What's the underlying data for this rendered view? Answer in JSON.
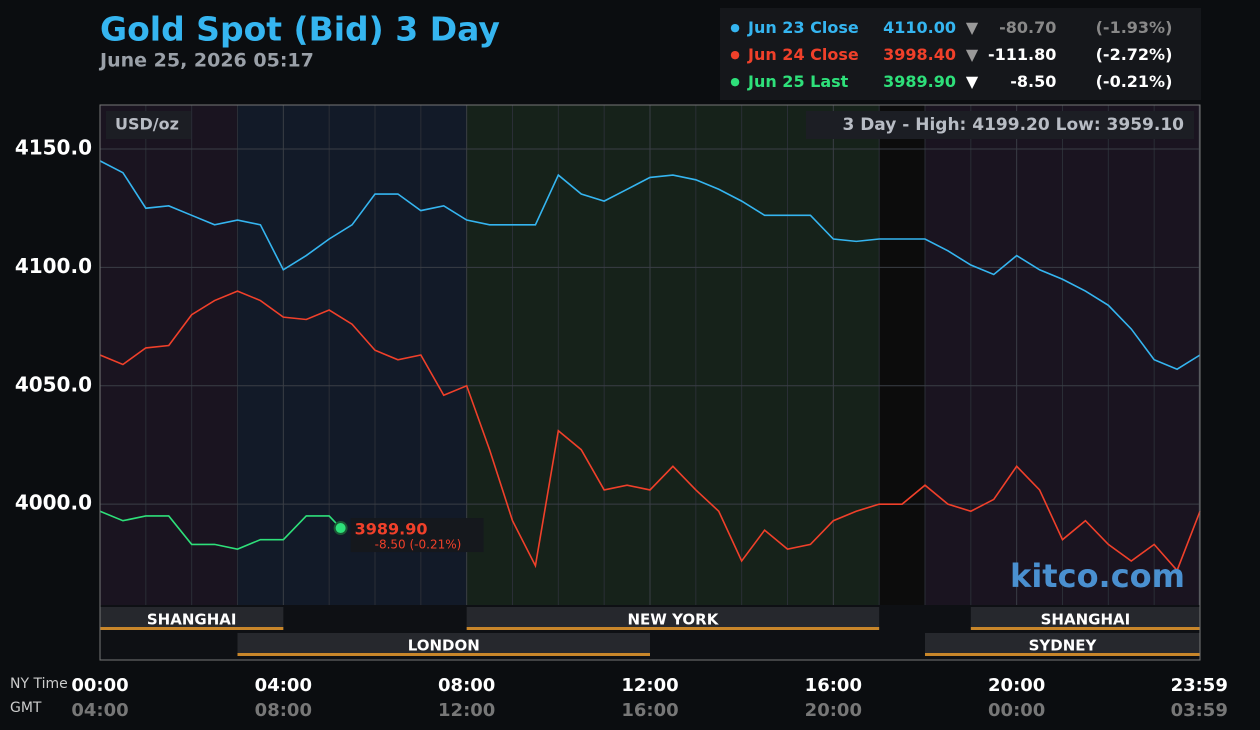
{
  "chart_data": {
    "type": "line",
    "title": "Gold Spot (Bid) 3 Day",
    "subtitle": "June 25, 2026 05:17",
    "unit_label": "USD/oz",
    "range_label": "3 Day - High: 4199.20  Low: 3959.10",
    "watermark": "kitco.com",
    "x_label": "NY Time",
    "x2_label": "GMT",
    "xlim": [
      0,
      24
    ],
    "ylim": [
      3957.4,
      4168.6
    ],
    "xticks": [
      {
        "value": 0,
        "label": "00:00"
      },
      {
        "value": 4,
        "label": "04:00"
      },
      {
        "value": 8,
        "label": "08:00"
      },
      {
        "value": 12,
        "label": "12:00"
      },
      {
        "value": 16,
        "label": "16:00"
      },
      {
        "value": 20,
        "label": "20:00"
      },
      {
        "value": 23.983,
        "label": "23:59"
      }
    ],
    "gmt_labels": [
      "04:00",
      "08:00",
      "12:00",
      "16:00",
      "20:00",
      "00:00",
      "03:59"
    ],
    "xminorticks": [
      1,
      2,
      3,
      5,
      6,
      7,
      9,
      10,
      11,
      13,
      14,
      15,
      17,
      18,
      19,
      21,
      22,
      23
    ],
    "yticks": [
      {
        "value": 4000,
        "label": "4000.0"
      },
      {
        "value": 4050,
        "label": "4050.0"
      },
      {
        "value": 4100,
        "label": "4100.0"
      },
      {
        "value": 4150,
        "label": "4150.0"
      }
    ],
    "grid": true,
    "sessions": [
      [
        {
          "name": "SHANGHAI",
          "start": 0,
          "end": 4
        },
        {
          "name": "NEW YORK",
          "start": 8,
          "end": 17
        },
        {
          "name": "SHANGHAI",
          "start": 19,
          "end": 24
        }
      ],
      [
        {
          "name": "LONDON",
          "start": 3,
          "end": 12
        },
        {
          "name": "SYDNEY",
          "start": 18,
          "end": 24
        }
      ]
    ],
    "last_label": {
      "price": "3989.90",
      "change": "-8.50 (-0.21%)"
    },
    "series": [
      {
        "name": "Jun 23 Close",
        "color": "#35b5f0",
        "price": "4110.00",
        "arrow": "▼",
        "change": "-80.70",
        "pct": "(-1.93%)",
        "x": [
          0,
          0.5,
          1,
          1.5,
          2,
          2.5,
          3,
          3.5,
          4,
          4.5,
          5,
          5.5,
          6,
          6.5,
          7,
          7.5,
          8,
          8.5,
          9,
          9.5,
          10,
          10.5,
          11,
          11.5,
          12,
          12.5,
          13,
          13.5,
          14,
          14.5,
          15,
          15.5,
          16,
          16.5,
          17,
          17.5,
          18,
          18.5,
          19,
          19.5,
          20,
          20.5,
          21,
          21.5,
          22,
          22.5,
          23,
          23.5,
          24
        ],
        "values": [
          4145,
          4140,
          4125,
          4126,
          4122,
          4118,
          4120,
          4118,
          4099,
          4105,
          4112,
          4118,
          4131,
          4131,
          4124,
          4126,
          4120,
          4118,
          4118,
          4118,
          4139,
          4131,
          4128,
          4133,
          4138,
          4139,
          4137,
          4133,
          4128,
          4122,
          4122,
          4122,
          4112,
          4111,
          4112,
          4112,
          4112,
          4107,
          4101,
          4097,
          4105,
          4099,
          4095,
          4090,
          4084,
          4074,
          4061,
          4057,
          4063
        ]
      },
      {
        "name": "Jun 24 Close",
        "color": "#f0402a",
        "price": "3998.40",
        "arrow": "▼",
        "change": "-111.80",
        "pct": "(-2.72%)",
        "x": [
          0,
          0.5,
          1,
          1.5,
          2,
          2.5,
          3,
          3.5,
          4,
          4.5,
          5,
          5.5,
          6,
          6.5,
          7,
          7.5,
          8,
          8.5,
          9,
          9.5,
          10,
          10.5,
          11,
          11.5,
          12,
          12.5,
          13,
          13.5,
          14,
          14.5,
          15,
          15.5,
          16,
          16.5,
          17,
          17.5,
          18,
          18.5,
          19,
          19.5,
          20,
          20.5,
          21,
          21.5,
          22,
          22.5,
          23,
          23.5,
          24
        ],
        "values": [
          4063,
          4059,
          4066,
          4067,
          4080,
          4086,
          4090,
          4086,
          4079,
          4078,
          4082,
          4076,
          4065,
          4061,
          4063,
          4046,
          4050,
          4023,
          3993,
          3974,
          4031,
          4023,
          4006,
          4008,
          4006,
          4016,
          4006,
          3997,
          3976,
          3989,
          3981,
          3983,
          3993,
          3997,
          4000,
          4000,
          4008,
          4000,
          3997,
          4002,
          4016,
          4006,
          3985,
          3993,
          3983,
          3976,
          3983,
          3972,
          3997
        ]
      },
      {
        "name": "Jun 25 Last",
        "color": "#2ee07a",
        "price": "3989.90",
        "arrow": "▼",
        "change": "-8.50",
        "pct": "(-0.21%)",
        "x": [
          0,
          0.5,
          1,
          1.5,
          2,
          2.5,
          3,
          3.5,
          4,
          4.5,
          5,
          5.25
        ],
        "values": [
          3997,
          3993,
          3995,
          3995,
          3983,
          3983,
          3981,
          3985,
          3985,
          3995,
          3995,
          3989.9
        ]
      }
    ]
  }
}
